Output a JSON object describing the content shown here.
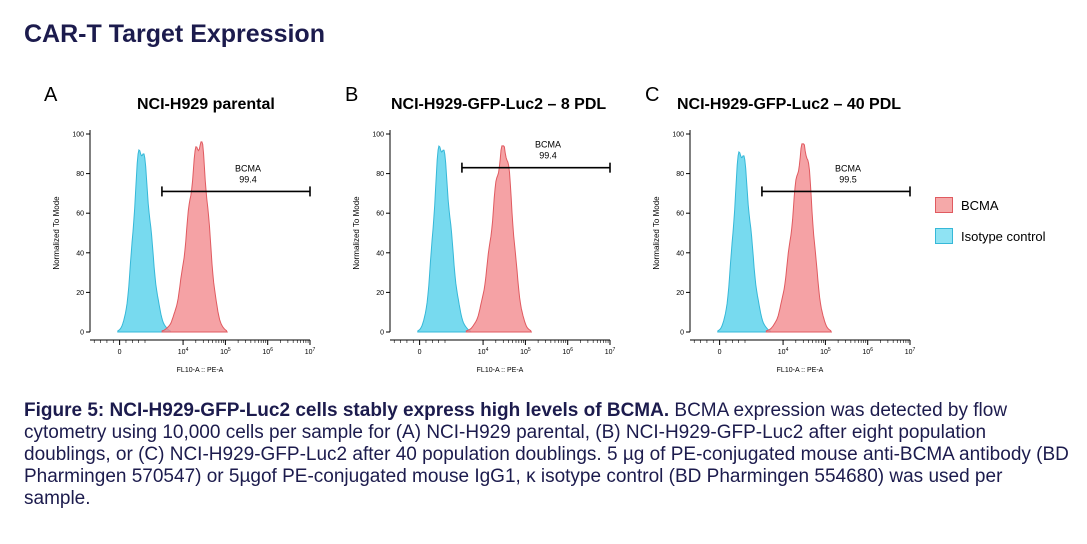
{
  "page_title": "CAR-T Target Expression",
  "colors": {
    "bcma": "#f28b8e",
    "bcma_stroke": "#e05a60",
    "isotype": "#5fd3ec",
    "isotype_stroke": "#36b8d8",
    "navy": "#1c1b4d"
  },
  "legend": [
    {
      "label": "BCMA",
      "series": "bcma"
    },
    {
      "label": "Isotype control",
      "series": "isotype"
    }
  ],
  "caption": {
    "bold": "Figure 5: NCI-H929-GFP-Luc2 cells stably express high levels of BCMA.",
    "body": " BCMA expression was detected by flow cytometry using 10,000 cells per sample for (A) NCI-H929 parental, (B) NCI-H929-GFP-Luc2 after eight population doublings, or (C) NCI-H929-GFP-Luc2 after 40 population doublings. 5 µg of PE-conjugated mouse anti-BCMA antibody (BD Pharmingen 570547) or 5µgof PE-conjugated mouse IgG1, κ isotype control (BD Pharmingen 554680) was used per sample."
  },
  "panels": [
    {
      "letter": "A",
      "title": "NCI-H929 parental"
    },
    {
      "letter": "B",
      "title": "NCI-H929-GFP-Luc2 – 8 PDL"
    },
    {
      "letter": "C",
      "title": "NCI-H929-GFP-Luc2 – 40 PDL"
    }
  ],
  "chart_data": [
    {
      "type": "area",
      "xlabel": "FL10-A :: PE-A",
      "ylabel": "Normalized To Mode",
      "ylim": [
        0,
        100
      ],
      "yticks": [
        0,
        20,
        40,
        60,
        80,
        100
      ],
      "xticks": [
        "0",
        "10^4",
        "10^5",
        "10^6",
        "10^7"
      ],
      "series": [
        {
          "name": "BCMA",
          "peak_x": 4.4,
          "peak_y": 96
        },
        {
          "name": "Isotype control",
          "peak_x": 3.0,
          "peak_y": 93
        }
      ],
      "gate": {
        "label": "BCMA",
        "value": "99.4",
        "y": 71,
        "x_from": 3.5,
        "x_to": 7.0
      }
    },
    {
      "type": "area",
      "xlabel": "FL10-A :: PE-A",
      "ylabel": "Normalized To Mode",
      "ylim": [
        0,
        100
      ],
      "yticks": [
        0,
        20,
        40,
        60,
        80,
        100
      ],
      "xticks": [
        "0",
        "10^4",
        "10^5",
        "10^6",
        "10^7"
      ],
      "series": [
        {
          "name": "BCMA",
          "peak_x": 4.5,
          "peak_y": 94
        },
        {
          "name": "Isotype control",
          "peak_x": 3.0,
          "peak_y": 95
        }
      ],
      "gate": {
        "label": "BCMA",
        "value": "99.4",
        "y": 83,
        "x_from": 3.5,
        "x_to": 7.0
      }
    },
    {
      "type": "area",
      "xlabel": "FL10-A :: PE-A",
      "ylabel": "Normalized To Mode",
      "ylim": [
        0,
        100
      ],
      "yticks": [
        0,
        20,
        40,
        60,
        80,
        100
      ],
      "xticks": [
        "0",
        "10^4",
        "10^5",
        "10^6",
        "10^7"
      ],
      "series": [
        {
          "name": "BCMA",
          "peak_x": 4.5,
          "peak_y": 95
        },
        {
          "name": "Isotype control",
          "peak_x": 3.0,
          "peak_y": 92
        }
      ],
      "gate": {
        "label": "BCMA",
        "value": "99.5",
        "y": 71,
        "x_from": 3.5,
        "x_to": 7.0
      }
    }
  ]
}
